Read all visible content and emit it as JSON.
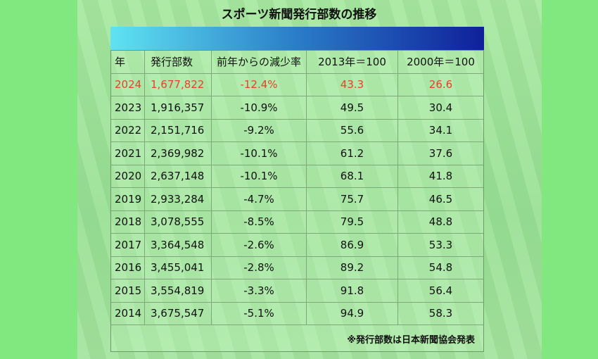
{
  "title": "スポーツ新聞発行部数の推移",
  "table": {
    "header": [
      "年",
      "発行部数",
      "前年からの減少率",
      "2013年＝100",
      "2000年＝100"
    ],
    "rows": [
      [
        "2024",
        "1,677,822",
        "-12.4%",
        "43.3",
        "26.6"
      ],
      [
        "2023",
        "1,916,357",
        "-10.9%",
        "49.5",
        "30.4"
      ],
      [
        "2022",
        "2,151,716",
        "-9.2%",
        "55.6",
        "34.1"
      ],
      [
        "2021",
        "2,369,982",
        "-10.1%",
        "61.2",
        "37.6"
      ],
      [
        "2020",
        "2,637,148",
        "-10.1%",
        "68.1",
        "41.8"
      ],
      [
        "2019",
        "2,933,284",
        "-4.7%",
        "75.7",
        "46.5"
      ],
      [
        "2018",
        "3,078,555",
        "-8.5%",
        "79.5",
        "48.8"
      ],
      [
        "2017",
        "3,364,548",
        "-2.6%",
        "86.9",
        "53.3"
      ],
      [
        "2016",
        "3,455,041",
        "-2.8%",
        "89.2",
        "54.8"
      ],
      [
        "2015",
        "3,554,819",
        "-3.3%",
        "91.8",
        "56.4"
      ],
      [
        "2014",
        "3,675,547",
        "-5.1%",
        "94.9",
        "58.3"
      ]
    ],
    "note": "※発行部数は日本新聞協会発表"
  }
}
